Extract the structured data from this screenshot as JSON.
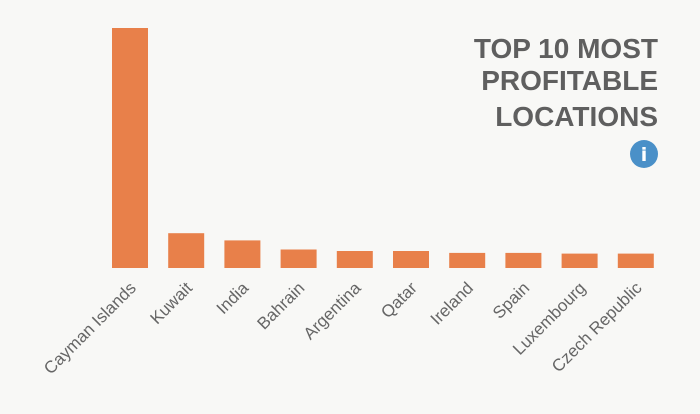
{
  "chart_data": {
    "type": "bar",
    "title_lines": [
      "TOP 10 MOST",
      "PROFITABLE",
      "LOCATIONS"
    ],
    "categories": [
      "Cayman Islands",
      "Kuwait",
      "India",
      "Bahrain",
      "Argentina",
      "Qatar",
      "Ireland",
      "Spain",
      "Luxembourg",
      "Czech Republic"
    ],
    "values": [
      100,
      14.5,
      11.5,
      7.7,
      7.1,
      7.1,
      6.3,
      6.3,
      6.0,
      6.0
    ],
    "xlabel": "",
    "ylabel": "",
    "ylim": [
      0,
      100
    ],
    "grid": false,
    "legend": "none",
    "bar_color": "#e8804a",
    "title_color": "#5f5f5f",
    "label_color": "#666666"
  },
  "info_button": {
    "icon": "info-icon",
    "glyph": "i",
    "color": "#4a90c8"
  }
}
